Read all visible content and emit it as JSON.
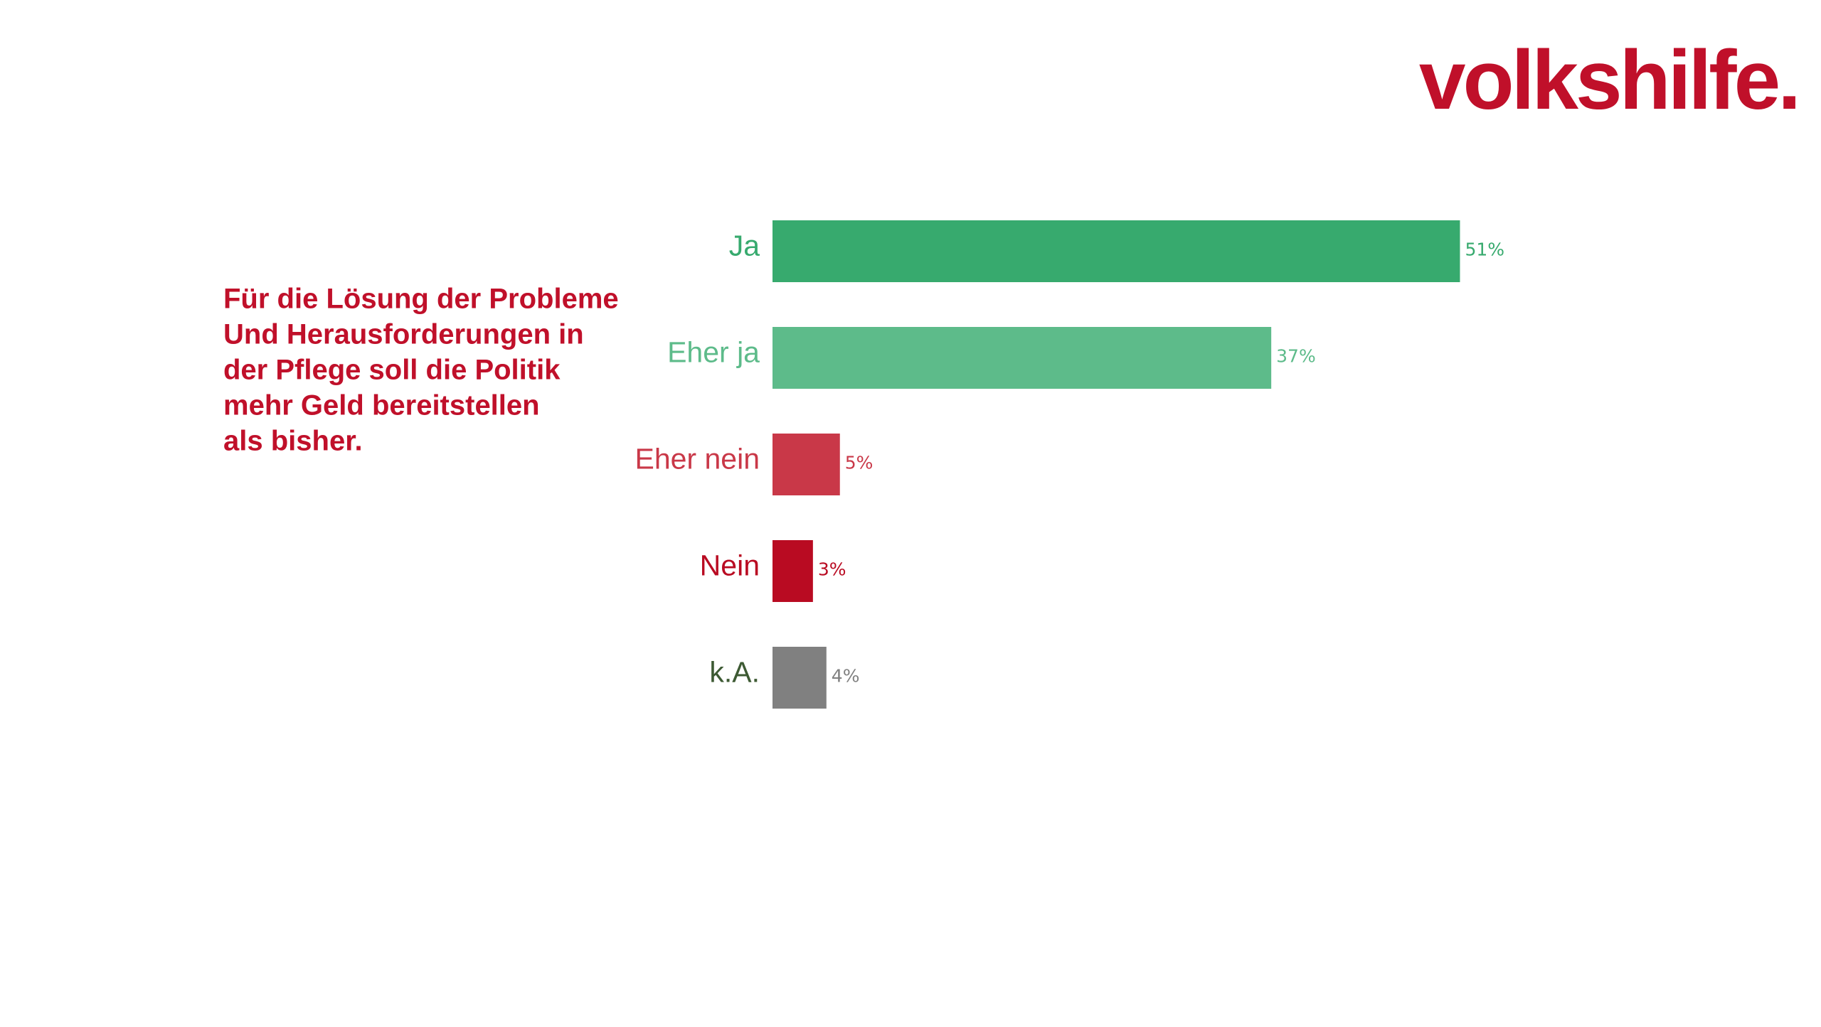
{
  "logo": "volkshilfe.",
  "chart_data": {
    "type": "bar",
    "orientation": "horizontal",
    "title": [
      "Für die Lösung der Probleme",
      "Und Herausforderungen in",
      "der Pflege soll die Politik",
      "mehr Geld bereitstellen",
      "als bisher."
    ],
    "categories": [
      "Ja",
      "Eher ja",
      "Eher nein",
      "Nein",
      "k.A."
    ],
    "values": [
      51,
      37,
      5,
      3,
      4
    ],
    "value_labels": [
      "51%",
      "37%",
      "5%",
      "3%",
      "4%"
    ],
    "colors": [
      "#37aa6e",
      "#5dbb8a",
      "#c93848",
      "#b90b22",
      "#808080"
    ],
    "label_colors": [
      "#37aa6e",
      "#5dbb8a",
      "#c93848",
      "#b90b22",
      "#3d5a33"
    ],
    "grid": false
  }
}
